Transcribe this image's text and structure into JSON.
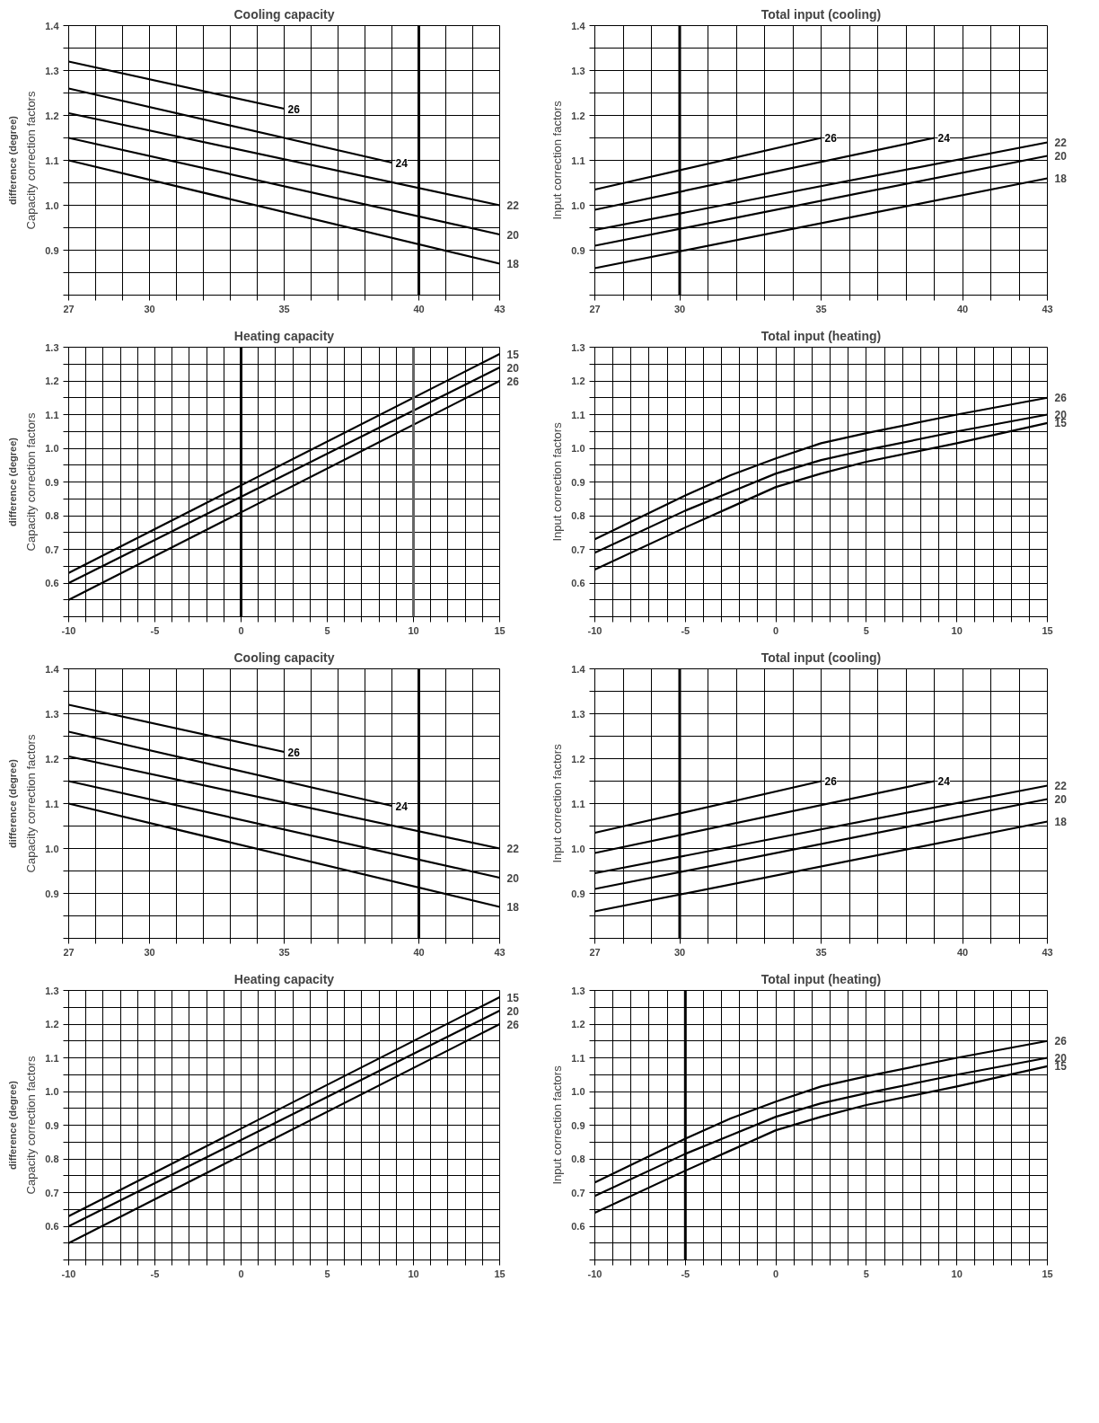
{
  "chart_data": [
    {
      "type": "line",
      "title": "Cooling capacity",
      "ylabel": "Capacity correction factors",
      "annotations": [
        "difference (degree)"
      ],
      "xlim": [
        27,
        43
      ],
      "ylim": [
        0.8,
        1.4
      ],
      "xticks": [
        27,
        {
          "value": 28,
          "label": null
        },
        {
          "value": 29,
          "label": null
        },
        30,
        {
          "value": 31,
          "label": null
        },
        {
          "value": 32,
          "label": null
        },
        {
          "value": 33,
          "label": null
        },
        {
          "value": 34,
          "label": null
        },
        35,
        {
          "value": 36,
          "label": null
        },
        {
          "value": 37,
          "label": null
        },
        {
          "value": 38,
          "label": null
        },
        {
          "value": 39,
          "label": null
        },
        40,
        {
          "value": 41,
          "label": null
        },
        {
          "value": 42,
          "label": null
        },
        43
      ],
      "yticks": [
        {
          "value": 0.8,
          "label": null
        },
        {
          "value": 0.85,
          "label": null
        },
        0.9,
        {
          "value": 0.95,
          "label": null
        },
        {
          "value": 1,
          "label": "1.0"
        },
        {
          "value": 1.05,
          "label": null
        },
        1.1,
        {
          "value": 1.15,
          "label": null
        },
        1.2,
        {
          "value": 1.25,
          "label": null
        },
        1.3,
        {
          "value": 1.35,
          "label": null
        },
        1.4
      ],
      "grid": true,
      "ref_lines": [
        {
          "axis": "x",
          "value": 40
        }
      ],
      "series": [
        {
          "name": "26",
          "color": "#000000",
          "x": [
            27,
            35
          ],
          "values": [
            1.32,
            1.215
          ]
        },
        {
          "name": "24",
          "color": "#000000",
          "x": [
            27,
            39
          ],
          "values": [
            1.26,
            1.095
          ]
        },
        {
          "name": "22",
          "color": "#000000",
          "x": [
            27,
            43
          ],
          "values": [
            1.205,
            1.0
          ]
        },
        {
          "name": "20",
          "color": "#000000",
          "x": [
            27,
            43
          ],
          "values": [
            1.15,
            0.935
          ]
        },
        {
          "name": "18",
          "color": "#000000",
          "x": [
            27,
            43
          ],
          "values": [
            1.1,
            0.87
          ]
        }
      ]
    },
    {
      "type": "line",
      "title": "Total input (cooling)",
      "ylabel": "Input correction factors",
      "xlim": [
        27,
        43
      ],
      "ylim": [
        0.8,
        1.4
      ],
      "xticks": [
        27,
        {
          "value": 28,
          "label": null
        },
        {
          "value": 29,
          "label": null
        },
        30,
        {
          "value": 31,
          "label": null
        },
        {
          "value": 32,
          "label": null
        },
        {
          "value": 33,
          "label": null
        },
        {
          "value": 34,
          "label": null
        },
        35,
        {
          "value": 36,
          "label": null
        },
        {
          "value": 37,
          "label": null
        },
        {
          "value": 38,
          "label": null
        },
        {
          "value": 39,
          "label": null
        },
        40,
        {
          "value": 41,
          "label": null
        },
        {
          "value": 42,
          "label": null
        },
        43
      ],
      "yticks": [
        {
          "value": 0.8,
          "label": null
        },
        {
          "value": 0.85,
          "label": null
        },
        0.9,
        {
          "value": 0.95,
          "label": null
        },
        {
          "value": 1,
          "label": "1.0"
        },
        {
          "value": 1.05,
          "label": null
        },
        1.1,
        {
          "value": 1.15,
          "label": null
        },
        1.2,
        {
          "value": 1.25,
          "label": null
        },
        1.3,
        {
          "value": 1.35,
          "label": null
        },
        1.4
      ],
      "grid": true,
      "ref_lines": [
        {
          "axis": "x",
          "value": 30
        }
      ],
      "series": [
        {
          "name": "26",
          "color": "#000000",
          "x": [
            27,
            35
          ],
          "values": [
            1.035,
            1.15
          ]
        },
        {
          "name": "24",
          "color": "#000000",
          "x": [
            27,
            39
          ],
          "values": [
            0.99,
            1.15
          ]
        },
        {
          "name": "22",
          "color": "#000000",
          "x": [
            27,
            43
          ],
          "values": [
            0.945,
            1.14
          ]
        },
        {
          "name": "20",
          "color": "#000000",
          "x": [
            27,
            43
          ],
          "values": [
            0.91,
            1.11
          ]
        },
        {
          "name": "18",
          "color": "#000000",
          "x": [
            27,
            43
          ],
          "values": [
            0.86,
            1.06
          ]
        }
      ]
    },
    {
      "type": "line",
      "title": "Heating capacity",
      "ylabel": "Capacity correction factors",
      "annotations": [
        "difference (degree)"
      ],
      "xlim": [
        -10,
        15
      ],
      "ylim": [
        0.5,
        1.3
      ],
      "xticks": [
        -10,
        {
          "value": -9,
          "label": null
        },
        {
          "value": -8,
          "label": null
        },
        {
          "value": -7,
          "label": null
        },
        {
          "value": -6,
          "label": null
        },
        -5,
        {
          "value": -4,
          "label": null
        },
        {
          "value": -3,
          "label": null
        },
        {
          "value": -2,
          "label": null
        },
        {
          "value": -1,
          "label": null
        },
        0,
        {
          "value": 1,
          "label": null
        },
        {
          "value": 2,
          "label": null
        },
        {
          "value": 3,
          "label": null
        },
        {
          "value": 4,
          "label": null
        },
        5,
        {
          "value": 6,
          "label": null
        },
        {
          "value": 7,
          "label": null
        },
        {
          "value": 8,
          "label": null
        },
        {
          "value": 9,
          "label": null
        },
        10,
        {
          "value": 11,
          "label": null
        },
        {
          "value": 12,
          "label": null
        },
        {
          "value": 13,
          "label": null
        },
        {
          "value": 14,
          "label": null
        },
        15
      ],
      "yticks": [
        {
          "value": 0.5,
          "label": null
        },
        {
          "value": 0.55,
          "label": null
        },
        0.6,
        {
          "value": 0.65,
          "label": null
        },
        0.7,
        {
          "value": 0.75,
          "label": null
        },
        0.8,
        {
          "value": 0.85,
          "label": null
        },
        0.9,
        {
          "value": 0.95,
          "label": null
        },
        {
          "value": 1,
          "label": "1.0"
        },
        {
          "value": 1.05,
          "label": null
        },
        1.1,
        {
          "value": 1.15,
          "label": null
        },
        1.2,
        {
          "value": 1.25,
          "label": null
        },
        1.3
      ],
      "grid": true,
      "ref_lines": [
        {
          "axis": "x",
          "value": 0
        },
        {
          "axis": "x",
          "value": 10,
          "color": "#666666"
        }
      ],
      "series": [
        {
          "name": "15",
          "color": "#000000",
          "x": [
            -10,
            15
          ],
          "values": [
            0.63,
            1.28
          ]
        },
        {
          "name": "20",
          "color": "#000000",
          "x": [
            -10,
            15
          ],
          "values": [
            0.6,
            1.24
          ]
        },
        {
          "name": "26",
          "color": "#000000",
          "x": [
            -10,
            15
          ],
          "values": [
            0.55,
            1.2
          ]
        }
      ]
    },
    {
      "type": "line",
      "title": "Total input (heating)",
      "ylabel": "Input correction factors",
      "xlim": [
        -10,
        15
      ],
      "ylim": [
        0.5,
        1.3
      ],
      "xticks": [
        -10,
        {
          "value": -9,
          "label": null
        },
        {
          "value": -8,
          "label": null
        },
        {
          "value": -7,
          "label": null
        },
        {
          "value": -6,
          "label": null
        },
        -5,
        {
          "value": -4,
          "label": null
        },
        {
          "value": -3,
          "label": null
        },
        {
          "value": -2,
          "label": null
        },
        {
          "value": -1,
          "label": null
        },
        0,
        {
          "value": 1,
          "label": null
        },
        {
          "value": 2,
          "label": null
        },
        {
          "value": 3,
          "label": null
        },
        {
          "value": 4,
          "label": null
        },
        5,
        {
          "value": 6,
          "label": null
        },
        {
          "value": 7,
          "label": null
        },
        {
          "value": 8,
          "label": null
        },
        {
          "value": 9,
          "label": null
        },
        10,
        {
          "value": 11,
          "label": null
        },
        {
          "value": 12,
          "label": null
        },
        {
          "value": 13,
          "label": null
        },
        {
          "value": 14,
          "label": null
        },
        15
      ],
      "yticks": [
        {
          "value": 0.5,
          "label": null
        },
        {
          "value": 0.55,
          "label": null
        },
        0.6,
        {
          "value": 0.65,
          "label": null
        },
        0.7,
        {
          "value": 0.75,
          "label": null
        },
        0.8,
        {
          "value": 0.85,
          "label": null
        },
        0.9,
        {
          "value": 0.95,
          "label": null
        },
        {
          "value": 1,
          "label": "1.0"
        },
        {
          "value": 1.05,
          "label": null
        },
        1.1,
        {
          "value": 1.15,
          "label": null
        },
        1.2,
        {
          "value": 1.25,
          "label": null
        },
        1.3
      ],
      "grid": true,
      "series": [
        {
          "name": "26",
          "color": "#000000",
          "x": [
            -10,
            -5,
            -2.5,
            0,
            2.5,
            5,
            10,
            15
          ],
          "values": [
            0.73,
            0.86,
            0.92,
            0.97,
            1.015,
            1.045,
            1.1,
            1.15
          ]
        },
        {
          "name": "20",
          "color": "#000000",
          "x": [
            -10,
            -5,
            -2.5,
            0,
            2.5,
            5,
            10,
            15
          ],
          "values": [
            0.69,
            0.815,
            0.87,
            0.925,
            0.965,
            0.995,
            1.05,
            1.1
          ]
        },
        {
          "name": "15",
          "color": "#000000",
          "x": [
            -10,
            -5,
            -2.5,
            0,
            2.5,
            5,
            10,
            15
          ],
          "values": [
            0.64,
            0.765,
            0.825,
            0.885,
            0.925,
            0.96,
            1.015,
            1.075
          ]
        }
      ]
    },
    {
      "type": "line",
      "title": "Cooling capacity",
      "ylabel": "Capacity correction factors",
      "annotations": [
        "difference (degree)"
      ],
      "xlim": [
        27,
        43
      ],
      "ylim": [
        0.8,
        1.4
      ],
      "xticks": [
        27,
        {
          "value": 28,
          "label": null
        },
        {
          "value": 29,
          "label": null
        },
        30,
        {
          "value": 31,
          "label": null
        },
        {
          "value": 32,
          "label": null
        },
        {
          "value": 33,
          "label": null
        },
        {
          "value": 34,
          "label": null
        },
        35,
        {
          "value": 36,
          "label": null
        },
        {
          "value": 37,
          "label": null
        },
        {
          "value": 38,
          "label": null
        },
        {
          "value": 39,
          "label": null
        },
        40,
        {
          "value": 41,
          "label": null
        },
        {
          "value": 42,
          "label": null
        },
        43
      ],
      "yticks": [
        {
          "value": 0.8,
          "label": null
        },
        {
          "value": 0.85,
          "label": null
        },
        0.9,
        {
          "value": 0.95,
          "label": null
        },
        {
          "value": 1,
          "label": "1.0"
        },
        {
          "value": 1.05,
          "label": null
        },
        1.1,
        {
          "value": 1.15,
          "label": null
        },
        1.2,
        {
          "value": 1.25,
          "label": null
        },
        1.3,
        {
          "value": 1.35,
          "label": null
        },
        1.4
      ],
      "grid": true,
      "ref_lines": [
        {
          "axis": "x",
          "value": 40
        }
      ],
      "series": [
        {
          "name": "26",
          "color": "#000000",
          "x": [
            27,
            35
          ],
          "values": [
            1.32,
            1.215
          ]
        },
        {
          "name": "24",
          "color": "#000000",
          "x": [
            27,
            39
          ],
          "values": [
            1.26,
            1.095
          ]
        },
        {
          "name": "22",
          "color": "#000000",
          "x": [
            27,
            43
          ],
          "values": [
            1.205,
            1.0
          ]
        },
        {
          "name": "20",
          "color": "#000000",
          "x": [
            27,
            43
          ],
          "values": [
            1.15,
            0.935
          ]
        },
        {
          "name": "18",
          "color": "#000000",
          "x": [
            27,
            43
          ],
          "values": [
            1.1,
            0.87
          ]
        }
      ]
    },
    {
      "type": "line",
      "title": "Total input (cooling)",
      "ylabel": "Input correction factors",
      "xlim": [
        27,
        43
      ],
      "ylim": [
        0.8,
        1.4
      ],
      "xticks": [
        27,
        {
          "value": 28,
          "label": null
        },
        {
          "value": 29,
          "label": null
        },
        30,
        {
          "value": 31,
          "label": null
        },
        {
          "value": 32,
          "label": null
        },
        {
          "value": 33,
          "label": null
        },
        {
          "value": 34,
          "label": null
        },
        35,
        {
          "value": 36,
          "label": null
        },
        {
          "value": 37,
          "label": null
        },
        {
          "value": 38,
          "label": null
        },
        {
          "value": 39,
          "label": null
        },
        40,
        {
          "value": 41,
          "label": null
        },
        {
          "value": 42,
          "label": null
        },
        43
      ],
      "yticks": [
        {
          "value": 0.8,
          "label": null
        },
        {
          "value": 0.85,
          "label": null
        },
        0.9,
        {
          "value": 0.95,
          "label": null
        },
        {
          "value": 1,
          "label": "1.0"
        },
        {
          "value": 1.05,
          "label": null
        },
        1.1,
        {
          "value": 1.15,
          "label": null
        },
        1.2,
        {
          "value": 1.25,
          "label": null
        },
        1.3,
        {
          "value": 1.35,
          "label": null
        },
        1.4
      ],
      "grid": true,
      "ref_lines": [
        {
          "axis": "x",
          "value": 30
        }
      ],
      "series": [
        {
          "name": "26",
          "color": "#000000",
          "x": [
            27,
            35
          ],
          "values": [
            1.035,
            1.15
          ]
        },
        {
          "name": "24",
          "color": "#000000",
          "x": [
            27,
            39
          ],
          "values": [
            0.99,
            1.15
          ]
        },
        {
          "name": "22",
          "color": "#000000",
          "x": [
            27,
            43
          ],
          "values": [
            0.945,
            1.14
          ]
        },
        {
          "name": "20",
          "color": "#000000",
          "x": [
            27,
            43
          ],
          "values": [
            0.91,
            1.11
          ]
        },
        {
          "name": "18",
          "color": "#000000",
          "x": [
            27,
            43
          ],
          "values": [
            0.86,
            1.06
          ]
        }
      ]
    },
    {
      "type": "line",
      "title": "Heating capacity",
      "ylabel": "Capacity correction factors",
      "annotations": [
        "difference (degree)"
      ],
      "xlim": [
        -10,
        15
      ],
      "ylim": [
        0.5,
        1.3
      ],
      "xticks": [
        -10,
        {
          "value": -9,
          "label": null
        },
        {
          "value": -8,
          "label": null
        },
        {
          "value": -7,
          "label": null
        },
        {
          "value": -6,
          "label": null
        },
        -5,
        {
          "value": -4,
          "label": null
        },
        {
          "value": -3,
          "label": null
        },
        {
          "value": -2,
          "label": null
        },
        {
          "value": -1,
          "label": null
        },
        0,
        {
          "value": 1,
          "label": null
        },
        {
          "value": 2,
          "label": null
        },
        {
          "value": 3,
          "label": null
        },
        {
          "value": 4,
          "label": null
        },
        5,
        {
          "value": 6,
          "label": null
        },
        {
          "value": 7,
          "label": null
        },
        {
          "value": 8,
          "label": null
        },
        {
          "value": 9,
          "label": null
        },
        10,
        {
          "value": 11,
          "label": null
        },
        {
          "value": 12,
          "label": null
        },
        {
          "value": 13,
          "label": null
        },
        {
          "value": 14,
          "label": null
        },
        15
      ],
      "yticks": [
        {
          "value": 0.5,
          "label": null
        },
        {
          "value": 0.55,
          "label": null
        },
        0.6,
        {
          "value": 0.65,
          "label": null
        },
        0.7,
        {
          "value": 0.75,
          "label": null
        },
        0.8,
        {
          "value": 0.85,
          "label": null
        },
        0.9,
        {
          "value": 0.95,
          "label": null
        },
        {
          "value": 1,
          "label": "1.0"
        },
        {
          "value": 1.05,
          "label": null
        },
        1.1,
        {
          "value": 1.15,
          "label": null
        },
        1.2,
        {
          "value": 1.25,
          "label": null
        },
        1.3
      ],
      "grid": true,
      "series": [
        {
          "name": "15",
          "color": "#000000",
          "x": [
            -10,
            15
          ],
          "values": [
            0.63,
            1.28
          ]
        },
        {
          "name": "20",
          "color": "#000000",
          "x": [
            -10,
            15
          ],
          "values": [
            0.6,
            1.24
          ]
        },
        {
          "name": "26",
          "color": "#000000",
          "x": [
            -10,
            15
          ],
          "values": [
            0.55,
            1.2
          ]
        }
      ]
    },
    {
      "type": "line",
      "title": "Total input (heating)",
      "ylabel": "Input correction factors",
      "xlim": [
        -10,
        15
      ],
      "ylim": [
        0.5,
        1.3
      ],
      "xticks": [
        -10,
        {
          "value": -9,
          "label": null
        },
        {
          "value": -8,
          "label": null
        },
        {
          "value": -7,
          "label": null
        },
        {
          "value": -6,
          "label": null
        },
        -5,
        {
          "value": -4,
          "label": null
        },
        {
          "value": -3,
          "label": null
        },
        {
          "value": -2,
          "label": null
        },
        {
          "value": -1,
          "label": null
        },
        0,
        {
          "value": 1,
          "label": null
        },
        {
          "value": 2,
          "label": null
        },
        {
          "value": 3,
          "label": null
        },
        {
          "value": 4,
          "label": null
        },
        5,
        {
          "value": 6,
          "label": null
        },
        {
          "value": 7,
          "label": null
        },
        {
          "value": 8,
          "label": null
        },
        {
          "value": 9,
          "label": null
        },
        10,
        {
          "value": 11,
          "label": null
        },
        {
          "value": 12,
          "label": null
        },
        {
          "value": 13,
          "label": null
        },
        {
          "value": 14,
          "label": null
        },
        15
      ],
      "yticks": [
        {
          "value": 0.5,
          "label": null
        },
        {
          "value": 0.55,
          "label": null
        },
        0.6,
        {
          "value": 0.65,
          "label": null
        },
        0.7,
        {
          "value": 0.75,
          "label": null
        },
        0.8,
        {
          "value": 0.85,
          "label": null
        },
        0.9,
        {
          "value": 0.95,
          "label": null
        },
        {
          "value": 1,
          "label": "1.0"
        },
        {
          "value": 1.05,
          "label": null
        },
        1.1,
        {
          "value": 1.15,
          "label": null
        },
        1.2,
        {
          "value": 1.25,
          "label": null
        },
        1.3
      ],
      "grid": true,
      "ref_lines": [
        {
          "axis": "x",
          "value": -5,
          "color": "#000000"
        }
      ],
      "series": [
        {
          "name": "26",
          "color": "#000000",
          "x": [
            -10,
            -5,
            -2.5,
            0,
            2.5,
            5,
            10,
            15
          ],
          "values": [
            0.73,
            0.86,
            0.92,
            0.97,
            1.015,
            1.045,
            1.1,
            1.15
          ]
        },
        {
          "name": "20",
          "color": "#000000",
          "x": [
            -10,
            -5,
            -2.5,
            0,
            2.5,
            5,
            10,
            15
          ],
          "values": [
            0.69,
            0.815,
            0.87,
            0.925,
            0.965,
            0.995,
            1.05,
            1.1
          ]
        },
        {
          "name": "15",
          "color": "#000000",
          "x": [
            -10,
            -5,
            -2.5,
            0,
            2.5,
            5,
            10,
            15
          ],
          "values": [
            0.64,
            0.765,
            0.825,
            0.885,
            0.925,
            0.96,
            1.015,
            1.075
          ]
        }
      ]
    }
  ]
}
